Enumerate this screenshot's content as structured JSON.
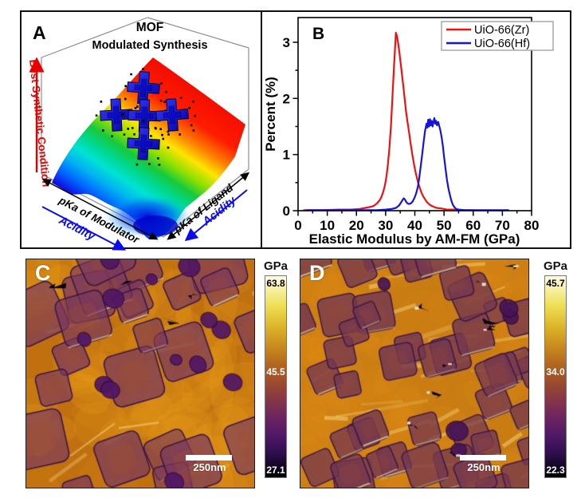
{
  "chart_data": [
    {
      "panel": "A",
      "label": "A",
      "type": "surface",
      "title": "MOF",
      "subtitle": "Modulated Synthesis",
      "z_axis_label": "Best Synthetic Condition",
      "x_axis_label": "pKa of Modulator",
      "x_axis_arrow_label": "Acidity",
      "y_axis_label": "pKa of Ligand",
      "y_axis_arrow_label": "Acidity",
      "marker_count": 5,
      "marker_shape": "blue cross-shaped MOF crystals with dotted halo",
      "surface_description": "Rainbow 3D surface: red (best condition) at high back-right corner sloping through yellow/green/cyan to blue valley at front",
      "colors": {
        "z_axis": "#e80000",
        "acidity": "#0b0bee",
        "marker": "#1414d8"
      }
    },
    {
      "panel": "B",
      "label": "B",
      "type": "line",
      "xlabel": "Elastic Modulus by AM-FM (GPa)",
      "ylabel": "Percent (%)",
      "xlim": [
        0,
        80
      ],
      "ylim": [
        0,
        3.44
      ],
      "x_ticks": [
        0,
        10,
        20,
        30,
        40,
        50,
        60,
        70,
        80
      ],
      "y_ticks": [
        0,
        1,
        2,
        3
      ],
      "x_minor_step": 5,
      "y_minor_step": 0.5,
      "grid": false,
      "legend_position": "top-right",
      "notes": "UiO-66(Zr) sharp peak ~3.17% at 33.5 GPa; UiO-66(Hf) small bump ~0.22% at 36.3 GPa and broad noisy peak ~1.6% spanning 43-49 GPa",
      "series": [
        {
          "name": "UiO-66(Zr)",
          "color": "#ee1111",
          "points": [
            [
              2,
              0.01
            ],
            [
              8,
              0.01
            ],
            [
              14,
              0.02
            ],
            [
              18,
              0.02
            ],
            [
              21,
              0.03
            ],
            [
              23,
              0.05
            ],
            [
              25,
              0.07
            ],
            [
              26,
              0.09
            ],
            [
              27,
              0.13
            ],
            [
              28,
              0.19
            ],
            [
              28.6,
              0.25
            ],
            [
              29.2,
              0.34
            ],
            [
              29.8,
              0.46
            ],
            [
              30.3,
              0.62
            ],
            [
              30.8,
              0.84
            ],
            [
              31.3,
              1.12
            ],
            [
              31.8,
              1.5
            ],
            [
              32.3,
              2.0
            ],
            [
              32.8,
              2.5
            ],
            [
              33.2,
              2.88
            ],
            [
              33.5,
              3.17
            ],
            [
              33.9,
              3.1
            ],
            [
              34.3,
              2.98
            ],
            [
              34.7,
              2.82
            ],
            [
              35.1,
              2.64
            ],
            [
              35.5,
              2.47
            ],
            [
              36,
              2.25
            ],
            [
              36.5,
              2.0
            ],
            [
              37,
              1.76
            ],
            [
              37.5,
              1.58
            ],
            [
              38,
              1.4
            ],
            [
              38.6,
              1.18
            ],
            [
              39.2,
              0.98
            ],
            [
              39.8,
              0.8
            ],
            [
              40.4,
              0.65
            ],
            [
              41,
              0.52
            ],
            [
              41.6,
              0.42
            ],
            [
              42.2,
              0.33
            ],
            [
              42.8,
              0.26
            ],
            [
              43.4,
              0.21
            ],
            [
              44,
              0.16
            ],
            [
              44.8,
              0.12
            ],
            [
              45.6,
              0.09
            ],
            [
              46.5,
              0.07
            ],
            [
              47.5,
              0.05
            ],
            [
              49,
              0.04
            ],
            [
              51,
              0.02
            ],
            [
              53,
              0.02
            ],
            [
              56,
              0.01
            ],
            [
              60,
              0.01
            ]
          ]
        },
        {
          "name": "UiO-66(Hf)",
          "color": "#1414dd",
          "points": [
            [
              3,
              0.01
            ],
            [
              10,
              0.01
            ],
            [
              20,
              0.01
            ],
            [
              27,
              0.01
            ],
            [
              30,
              0.02
            ],
            [
              32,
              0.03
            ],
            [
              33.5,
              0.05
            ],
            [
              34.5,
              0.09
            ],
            [
              35.2,
              0.14
            ],
            [
              35.8,
              0.19
            ],
            [
              36.2,
              0.22
            ],
            [
              36.6,
              0.2
            ],
            [
              37,
              0.16
            ],
            [
              37.5,
              0.13
            ],
            [
              38,
              0.12
            ],
            [
              38.6,
              0.13
            ],
            [
              39.2,
              0.16
            ],
            [
              39.8,
              0.22
            ],
            [
              40.4,
              0.3
            ],
            [
              41,
              0.42
            ],
            [
              41.5,
              0.58
            ],
            [
              42,
              0.78
            ],
            [
              42.5,
              1.0
            ],
            [
              43,
              1.22
            ],
            [
              43.5,
              1.42
            ],
            [
              44,
              1.55
            ],
            [
              44.3,
              1.48
            ],
            [
              44.6,
              1.62
            ],
            [
              44.9,
              1.5
            ],
            [
              45.2,
              1.63
            ],
            [
              45.5,
              1.52
            ],
            [
              45.8,
              1.6
            ],
            [
              46.1,
              1.5
            ],
            [
              46.4,
              1.58
            ],
            [
              46.7,
              1.65
            ],
            [
              47,
              1.55
            ],
            [
              47.3,
              1.6
            ],
            [
              47.6,
              1.52
            ],
            [
              48,
              1.58
            ],
            [
              48.4,
              1.5
            ],
            [
              48.8,
              1.42
            ],
            [
              49.2,
              1.3
            ],
            [
              49.6,
              1.15
            ],
            [
              50,
              0.97
            ],
            [
              50.5,
              0.75
            ],
            [
              51,
              0.55
            ],
            [
              51.5,
              0.4
            ],
            [
              52,
              0.28
            ],
            [
              52.5,
              0.18
            ],
            [
              53,
              0.11
            ],
            [
              53.6,
              0.06
            ],
            [
              54.2,
              0.03
            ],
            [
              55,
              0.02
            ],
            [
              57,
              0.01
            ],
            [
              60,
              0.01
            ],
            [
              64,
              0.01
            ],
            [
              68,
              0.01
            ],
            [
              72,
              0.01
            ]
          ]
        }
      ]
    },
    {
      "panel": "C",
      "label": "C",
      "type": "heatmap",
      "description": "AM-FM elastic modulus map of UiO-66(Zr): orange matrix with sparse dark purple cubic crystals and round particles",
      "colorbar": {
        "unit": "GPa",
        "max": "63.8",
        "mid": "45.5",
        "min": "27.1"
      },
      "scale_bar": "250nm"
    },
    {
      "panel": "D",
      "label": "D",
      "type": "heatmap",
      "description": "AM-FM elastic modulus map of UiO-66(Hf): densely packed purple cubic crystals with bright yellow boundaries and black pits",
      "colorbar": {
        "unit": "GPa",
        "max": "45.7",
        "mid": "34.0",
        "min": "22.3"
      },
      "scale_bar": "250nm"
    }
  ]
}
